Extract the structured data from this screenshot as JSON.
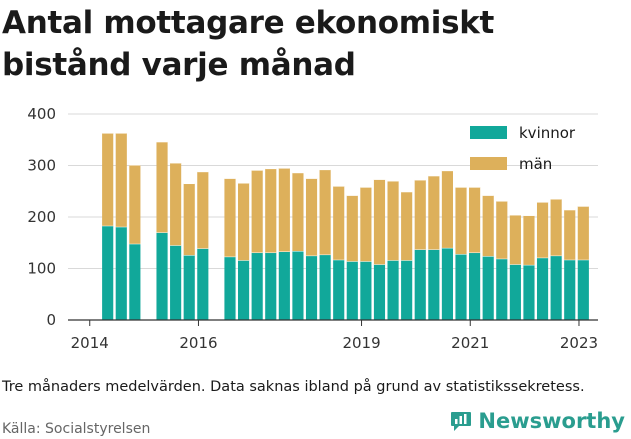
{
  "chart_data": {
    "type": "bar",
    "stacked": true,
    "title": "Antal mottagare ekonomiskt bistånd varje månad",
    "xlabel": "",
    "ylabel": "",
    "ylim": [
      0,
      400
    ],
    "yticks": [
      "0",
      "100",
      "200",
      "300",
      "400"
    ],
    "xticks": [
      {
        "label": "2014",
        "x": 2014.0
      },
      {
        "label": "2016",
        "x": 2016.0
      },
      {
        "label": "2019",
        "x": 2019.0
      },
      {
        "label": "2021",
        "x": 2021.0
      },
      {
        "label": "2023",
        "x": 2023.0
      }
    ],
    "xlim": [
      2013.6,
      2023.35
    ],
    "grid": true,
    "legend": "top-right",
    "series": [
      {
        "name": "kvinnor",
        "color": "#11a89a"
      },
      {
        "name": "män",
        "color": "#ddb05b"
      }
    ],
    "bars": [
      {
        "x": 2014.33,
        "kvinnor": 183,
        "män": 180
      },
      {
        "x": 2014.58,
        "kvinnor": 181,
        "män": 182
      },
      {
        "x": 2014.83,
        "kvinnor": 148,
        "män": 153
      },
      {
        "x": 2015.33,
        "kvinnor": 170,
        "män": 176
      },
      {
        "x": 2015.58,
        "kvinnor": 145,
        "män": 160
      },
      {
        "x": 2015.83,
        "kvinnor": 126,
        "män": 139
      },
      {
        "x": 2016.08,
        "kvinnor": 139,
        "män": 149
      },
      {
        "x": 2016.58,
        "kvinnor": 123,
        "män": 152
      },
      {
        "x": 2016.83,
        "kvinnor": 116,
        "män": 150
      },
      {
        "x": 2017.08,
        "kvinnor": 131,
        "män": 160
      },
      {
        "x": 2017.33,
        "kvinnor": 131,
        "män": 163
      },
      {
        "x": 2017.58,
        "kvinnor": 133,
        "män": 162
      },
      {
        "x": 2017.83,
        "kvinnor": 134,
        "män": 152
      },
      {
        "x": 2018.08,
        "kvinnor": 125,
        "män": 150
      },
      {
        "x": 2018.33,
        "kvinnor": 127,
        "män": 165
      },
      {
        "x": 2018.58,
        "kvinnor": 117,
        "män": 143
      },
      {
        "x": 2018.83,
        "kvinnor": 114,
        "män": 128
      },
      {
        "x": 2019.08,
        "kvinnor": 114,
        "män": 144
      },
      {
        "x": 2019.33,
        "kvinnor": 108,
        "män": 165
      },
      {
        "x": 2019.58,
        "kvinnor": 116,
        "män": 154
      },
      {
        "x": 2019.83,
        "kvinnor": 116,
        "män": 133
      },
      {
        "x": 2020.08,
        "kvinnor": 137,
        "män": 135
      },
      {
        "x": 2020.33,
        "kvinnor": 137,
        "män": 143
      },
      {
        "x": 2020.58,
        "kvinnor": 140,
        "män": 150
      },
      {
        "x": 2020.83,
        "kvinnor": 128,
        "män": 130
      },
      {
        "x": 2021.08,
        "kvinnor": 131,
        "män": 127
      },
      {
        "x": 2021.33,
        "kvinnor": 124,
        "män": 118
      },
      {
        "x": 2021.58,
        "kvinnor": 119,
        "män": 112
      },
      {
        "x": 2021.83,
        "kvinnor": 108,
        "män": 96
      },
      {
        "x": 2022.08,
        "kvinnor": 107,
        "män": 96
      },
      {
        "x": 2022.33,
        "kvinnor": 121,
        "män": 108
      },
      {
        "x": 2022.58,
        "kvinnor": 125,
        "män": 110
      },
      {
        "x": 2022.83,
        "kvinnor": 117,
        "män": 97
      },
      {
        "x": 2023.08,
        "kvinnor": 117,
        "män": 104
      }
    ]
  },
  "note": "Tre månaders medelvärden. Data saknas ibland på grund av statistikssekretess.",
  "source": "Källa: Socialstyrelsen",
  "brand": {
    "name": "Newsworthy",
    "icon": "newsworthy-logo-icon",
    "color": "#2a9d8f"
  }
}
